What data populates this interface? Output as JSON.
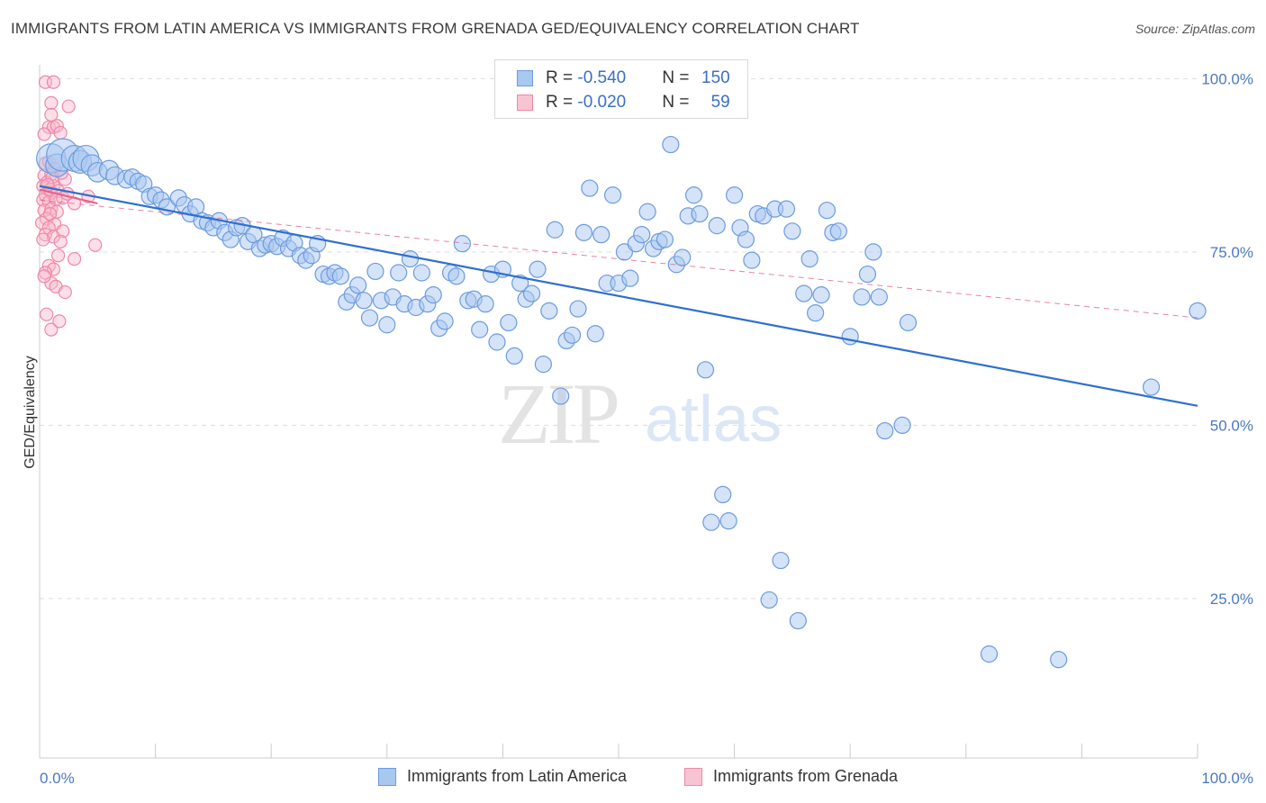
{
  "title": "IMMIGRANTS FROM LATIN AMERICA VS IMMIGRANTS FROM GRENADA GED/EQUIVALENCY CORRELATION CHART",
  "source": "Source: ZipAtlas.com",
  "watermark": {
    "zip": "ZIP",
    "atlas": "atlas"
  },
  "legend_top": {
    "rows": [
      {
        "r_label": "R = ",
        "r_value": "-0.540",
        "n_label": "N = ",
        "n_value": "150"
      },
      {
        "r_label": "R = ",
        "r_value": "-0.020",
        "n_label": "N = ",
        "n_value": "59"
      }
    ]
  },
  "legend_bottom": [
    "Immigrants from Latin America",
    "Immigrants from Grenada"
  ],
  "colors": {
    "blue_fill": "#a9c8f0",
    "blue_stroke": "#6b9be0",
    "blue_line": "#2f6fd0",
    "pink_fill": "#f8b8cc",
    "pink_stroke": "#ee88a8",
    "pink_line": "#e8608a",
    "grid": "#dddddd",
    "axis_label": "#4a78c2"
  },
  "chart_data": {
    "type": "scatter",
    "title": "IMMIGRANTS FROM LATIN AMERICA VS IMMIGRANTS FROM GRENADA GED/EQUIVALENCY CORRELATION CHART",
    "xlabel": "",
    "ylabel": "GED/Equivalency",
    "xlim": [
      0,
      100
    ],
    "ylim": [
      2,
      102
    ],
    "y_ticks": [
      25,
      50,
      75,
      100
    ],
    "y_tick_labels": [
      "25.0%",
      "50.0%",
      "75.0%",
      "100.0%"
    ],
    "x_tick_labels": [
      "0.0%",
      "100.0%"
    ],
    "grid": "horizontal dashed",
    "legend": "bottom",
    "series": [
      {
        "name": "Immigrants from Latin America",
        "r": -0.54,
        "n": 150,
        "trend": {
          "x": [
            0,
            100
          ],
          "y": [
            84.5,
            52.8
          ],
          "style": "solid"
        },
        "points": [
          [
            1,
            88.5,
            1.8
          ],
          [
            1.5,
            87.5,
            1.4
          ],
          [
            2,
            89,
            2
          ],
          [
            3,
            88.5,
            1.6
          ],
          [
            3.5,
            88,
            1.4
          ],
          [
            4,
            88.5,
            1.6
          ],
          [
            4.5,
            87.5,
            1.3
          ],
          [
            5,
            86.5,
            1.2
          ],
          [
            6,
            86.8,
            1.2
          ],
          [
            6.5,
            86,
            1.1
          ],
          [
            7.5,
            85.5,
            1.1
          ],
          [
            8,
            85.8,
            1
          ],
          [
            8.5,
            85.2,
            1
          ],
          [
            9,
            84.8,
            1
          ],
          [
            9.5,
            83,
            1
          ],
          [
            10,
            83.2,
            1
          ],
          [
            10.5,
            82.5,
            1
          ],
          [
            11,
            81.5,
            1
          ],
          [
            12,
            82.8,
            1
          ],
          [
            12.5,
            81.8,
            1
          ],
          [
            13,
            80.5,
            1
          ],
          [
            13.5,
            81.5,
            1
          ],
          [
            14,
            79.5,
            1
          ],
          [
            14.5,
            79.2,
            1
          ],
          [
            15,
            78.5,
            1
          ],
          [
            15.5,
            79.5,
            1
          ],
          [
            16,
            77.8,
            1
          ],
          [
            16.5,
            76.8,
            1
          ],
          [
            17,
            78.5,
            1
          ],
          [
            17.5,
            78.8,
            1
          ],
          [
            18,
            76.5,
            1
          ],
          [
            18.5,
            77.5,
            1
          ],
          [
            19,
            75.5,
            1
          ],
          [
            19.5,
            76,
            1
          ],
          [
            20,
            76.2,
            1
          ],
          [
            20.5,
            75.8,
            1
          ],
          [
            21,
            77,
            1
          ],
          [
            21.5,
            75.5,
            1
          ],
          [
            22,
            76.3,
            1
          ],
          [
            22.5,
            74.5,
            1
          ],
          [
            23,
            73.8,
            1
          ],
          [
            23.5,
            74.5,
            1
          ],
          [
            24,
            76.2,
            1
          ],
          [
            24.5,
            71.8,
            1
          ],
          [
            25,
            71.5,
            1
          ],
          [
            25.5,
            72,
            1
          ],
          [
            26,
            71.5,
            1
          ],
          [
            26.5,
            67.8,
            1
          ],
          [
            27,
            68.8,
            1
          ],
          [
            27.5,
            70.2,
            1
          ],
          [
            28,
            68,
            1
          ],
          [
            28.5,
            65.5,
            1
          ],
          [
            29,
            72.2,
            1
          ],
          [
            29.5,
            68,
            1
          ],
          [
            30,
            64.5,
            1
          ],
          [
            30.5,
            68.5,
            1
          ],
          [
            31,
            72,
            1
          ],
          [
            31.5,
            67.5,
            1
          ],
          [
            32,
            74,
            1
          ],
          [
            32.5,
            67,
            1
          ],
          [
            33,
            72,
            1
          ],
          [
            33.5,
            67.5,
            1
          ],
          [
            34,
            68.8,
            1
          ],
          [
            34.5,
            64,
            1
          ],
          [
            35,
            65,
            1
          ],
          [
            35.5,
            72,
            1
          ],
          [
            36,
            71.5,
            1
          ],
          [
            36.5,
            76.2,
            1
          ],
          [
            37,
            68,
            1
          ],
          [
            37.5,
            68.2,
            1
          ],
          [
            38,
            63.8,
            1
          ],
          [
            38.5,
            67.5,
            1
          ],
          [
            39,
            71.8,
            1
          ],
          [
            39.5,
            62,
            1
          ],
          [
            40,
            72.5,
            1
          ],
          [
            40.5,
            64.8,
            1
          ],
          [
            41,
            60,
            1
          ],
          [
            41.5,
            70.5,
            1
          ],
          [
            42,
            68.2,
            1
          ],
          [
            42.5,
            69,
            1
          ],
          [
            43,
            72.5,
            1
          ],
          [
            43.5,
            58.8,
            1
          ],
          [
            44,
            66.5,
            1
          ],
          [
            44.5,
            78.2,
            1
          ],
          [
            45,
            54.2,
            1
          ],
          [
            45.5,
            62.2,
            1
          ],
          [
            46,
            63,
            1
          ],
          [
            46.5,
            66.8,
            1
          ],
          [
            47,
            77.8,
            1
          ],
          [
            47.5,
            84.2,
            1
          ],
          [
            48,
            63.2,
            1
          ],
          [
            48.5,
            77.5,
            1
          ],
          [
            49,
            70.5,
            1
          ],
          [
            49.5,
            83.2,
            1
          ],
          [
            50,
            70.5,
            1
          ],
          [
            50.5,
            75,
            1
          ],
          [
            51,
            71.2,
            1
          ],
          [
            51.5,
            76.2,
            1
          ],
          [
            52,
            77.5,
            1
          ],
          [
            52.5,
            80.8,
            1
          ],
          [
            53,
            75.5,
            1
          ],
          [
            53.5,
            76.5,
            1
          ],
          [
            54,
            76.8,
            1
          ],
          [
            54.5,
            90.5,
            1
          ],
          [
            55,
            73.2,
            1
          ],
          [
            55.5,
            74.2,
            1
          ],
          [
            56,
            80.2,
            1
          ],
          [
            56.5,
            83.2,
            1
          ],
          [
            57,
            80.5,
            1
          ],
          [
            57.5,
            58,
            1
          ],
          [
            58,
            36,
            1
          ],
          [
            58.5,
            78.8,
            1
          ],
          [
            59,
            40,
            1
          ],
          [
            59.5,
            36.2,
            1
          ],
          [
            60,
            83.2,
            1
          ],
          [
            60.5,
            78.5,
            1
          ],
          [
            61,
            76.8,
            1
          ],
          [
            61.5,
            73.8,
            1
          ],
          [
            62,
            80.5,
            1
          ],
          [
            62.5,
            80.2,
            1
          ],
          [
            63,
            24.8,
            1
          ],
          [
            63.5,
            81.2,
            1
          ],
          [
            64,
            30.5,
            1
          ],
          [
            64.5,
            81.2,
            1
          ],
          [
            65,
            78,
            1
          ],
          [
            65.5,
            21.8,
            1
          ],
          [
            66,
            69,
            1
          ],
          [
            66.5,
            74,
            1
          ],
          [
            67,
            66.2,
            1
          ],
          [
            67.5,
            68.8,
            1
          ],
          [
            68,
            81,
            1
          ],
          [
            68.5,
            77.8,
            1
          ],
          [
            69,
            78,
            1
          ],
          [
            70,
            62.8,
            1
          ],
          [
            71,
            68.5,
            1
          ],
          [
            71.5,
            71.8,
            1
          ],
          [
            72,
            75,
            1
          ],
          [
            72.5,
            68.5,
            1
          ],
          [
            73,
            49.2,
            1
          ],
          [
            74.5,
            50,
            1
          ],
          [
            75,
            64.8,
            1
          ],
          [
            82,
            17,
            1
          ],
          [
            88,
            16.2,
            1
          ],
          [
            96,
            55.5,
            1
          ],
          [
            100,
            66.5,
            1
          ]
        ]
      },
      {
        "name": "Immigrants from Grenada",
        "r": -0.02,
        "n": 59,
        "trend_short": {
          "x": [
            0,
            5
          ],
          "y": [
            84,
            82
          ],
          "style": "solid"
        },
        "trend": {
          "x": [
            0,
            100
          ],
          "y": [
            82.5,
            65.5
          ],
          "style": "dashed"
        },
        "points": [
          [
            0.5,
            99.5
          ],
          [
            1.2,
            99.5
          ],
          [
            1,
            96.5
          ],
          [
            2.5,
            96
          ],
          [
            1,
            94.8
          ],
          [
            0.8,
            93
          ],
          [
            1.2,
            93
          ],
          [
            1.5,
            93.2
          ],
          [
            0.4,
            92
          ],
          [
            1.8,
            92.2
          ],
          [
            0.5,
            87.8
          ],
          [
            0.8,
            88
          ],
          [
            1.3,
            87
          ],
          [
            0.4,
            86
          ],
          [
            1,
            86.2
          ],
          [
            0.6,
            85
          ],
          [
            0.3,
            84.5
          ],
          [
            0.9,
            84
          ],
          [
            1.2,
            84.5
          ],
          [
            2.2,
            85.5
          ],
          [
            0.5,
            83.2
          ],
          [
            1,
            83.5
          ],
          [
            1.6,
            83.8
          ],
          [
            0.3,
            82.5
          ],
          [
            0.8,
            82.2
          ],
          [
            1.4,
            82.6
          ],
          [
            2,
            82.8
          ],
          [
            3,
            82
          ],
          [
            4.2,
            83
          ],
          [
            0.4,
            81
          ],
          [
            1,
            81.2
          ],
          [
            1.5,
            80.8
          ],
          [
            0.6,
            79.8
          ],
          [
            0.2,
            79.2
          ],
          [
            1.3,
            79
          ],
          [
            0.8,
            78.5
          ],
          [
            2,
            78
          ],
          [
            0.5,
            77.5
          ],
          [
            1.2,
            77.2
          ],
          [
            0.3,
            76.8
          ],
          [
            1.8,
            76.5
          ],
          [
            4.8,
            76
          ],
          [
            3,
            74
          ],
          [
            0.8,
            73
          ],
          [
            1.2,
            72.5
          ],
          [
            0.5,
            72
          ],
          [
            1,
            70.5
          ],
          [
            1.4,
            70
          ],
          [
            2.2,
            69.2
          ],
          [
            0.6,
            66
          ],
          [
            1,
            63.8
          ],
          [
            1.7,
            65
          ],
          [
            0.4,
            71.5
          ],
          [
            1.6,
            74.5
          ],
          [
            2.4,
            83.4
          ],
          [
            0.9,
            80.5
          ],
          [
            1.1,
            85.8
          ],
          [
            0.7,
            84.7
          ],
          [
            1.9,
            86.4
          ]
        ]
      }
    ]
  }
}
